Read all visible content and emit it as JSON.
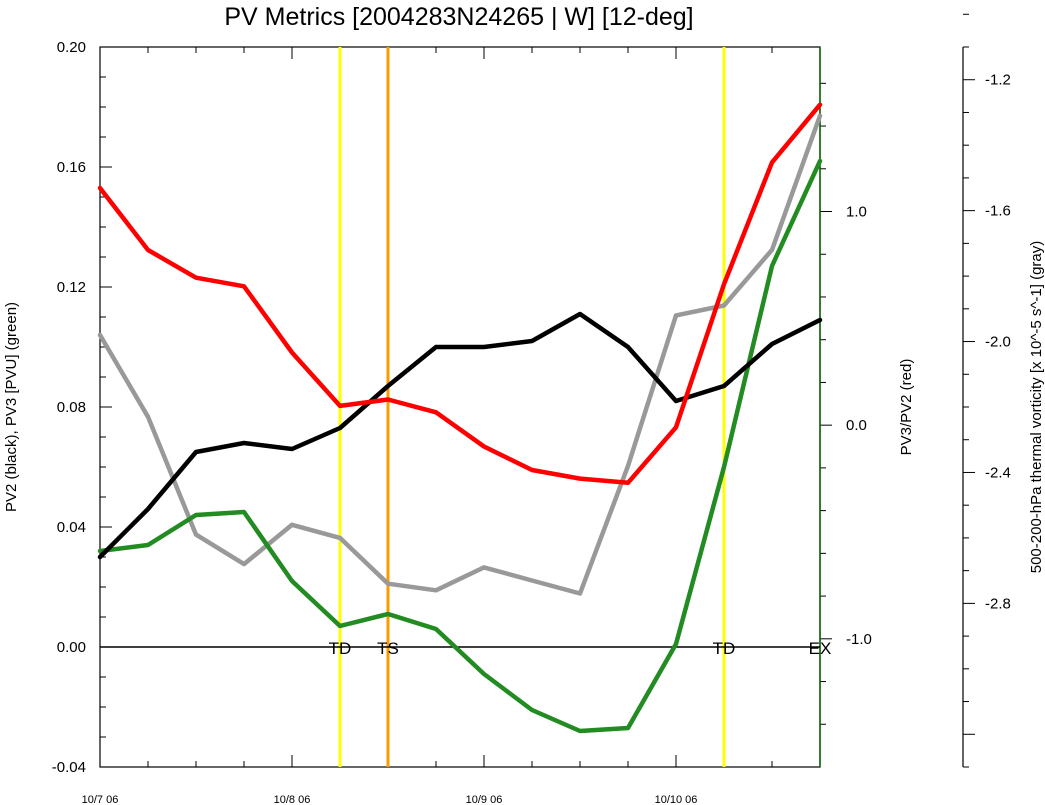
{
  "chart_data": {
    "type": "line",
    "title": "PV Metrics [2004283N24265 | W] [12-deg]",
    "x": [
      0,
      6,
      12,
      18,
      24,
      30,
      36,
      42,
      48,
      54,
      60,
      66,
      72,
      78,
      84,
      90
    ],
    "x_range": [
      0,
      90
    ],
    "x_ticks": [
      {
        "x": 0,
        "label": "10/7 06"
      },
      {
        "x": 24,
        "label": "10/8 06"
      },
      {
        "x": 48,
        "label": "10/9 06"
      },
      {
        "x": 72,
        "label": "10/10 06"
      }
    ],
    "axes": {
      "left": {
        "label": "PV2 (black), PV3 [PVU] (green)",
        "range": [
          -0.04,
          0.2
        ],
        "ticks": [
          "0.20",
          "0.16",
          "0.12",
          "0.08",
          "0.04",
          "0.00",
          "-0.04"
        ]
      },
      "right1": {
        "label": "PV3/PV2 (red)",
        "range": [
          -1.6,
          1.77
        ],
        "ticks": [
          "1.0",
          "0.0",
          "-1.0"
        ]
      },
      "right2": {
        "label": "500-200-hPa thermal vorticity [x 10^-5 s^-1] (gray)",
        "range": [
          -3.3,
          -1.1
        ],
        "ticks": [
          "-1.2",
          "-1.6",
          "-2.0",
          "-2.4",
          "-2.8"
        ]
      }
    },
    "series": [
      {
        "axis": "left",
        "color": "#000000",
        "values": [
          0.03,
          0.046,
          0.065,
          0.068,
          0.066,
          0.073,
          0.087,
          0.1,
          0.1,
          0.102,
          0.111,
          0.1,
          0.082,
          0.087,
          0.101,
          0.109
        ]
      },
      {
        "axis": "left",
        "color": "#228b22",
        "values": [
          0.032,
          0.034,
          0.044,
          0.045,
          0.022,
          0.007,
          0.011,
          0.006,
          -0.009,
          -0.021,
          -0.028,
          -0.027,
          0.001,
          0.06,
          0.127,
          0.162
        ]
      },
      {
        "axis": "right1",
        "color": "#ff0000",
        "values": [
          1.11,
          0.82,
          0.69,
          0.65,
          0.34,
          0.09,
          0.12,
          0.06,
          -0.1,
          -0.21,
          -0.25,
          -0.27,
          -0.01,
          0.66,
          1.23,
          1.5
        ]
      },
      {
        "axis": "right2",
        "color": "#999999",
        "values": [
          -1.98,
          -2.23,
          -2.59,
          -2.68,
          -2.56,
          -2.6,
          -2.74,
          -2.76,
          -2.69,
          -2.73,
          -2.77,
          -2.38,
          -1.92,
          -1.89,
          -1.72,
          -1.31
        ]
      }
    ],
    "events": [
      {
        "x": 30,
        "label": "TD",
        "color": "#ffff00"
      },
      {
        "x": 36,
        "label": "TS",
        "color": "#ff9900"
      },
      {
        "x": 78,
        "label": "TD",
        "color": "#ffff00"
      },
      {
        "x": 90,
        "label": "EX",
        "color": "#006400"
      }
    ],
    "zero_line_left": 0.0,
    "grid": false,
    "legend": "none"
  }
}
